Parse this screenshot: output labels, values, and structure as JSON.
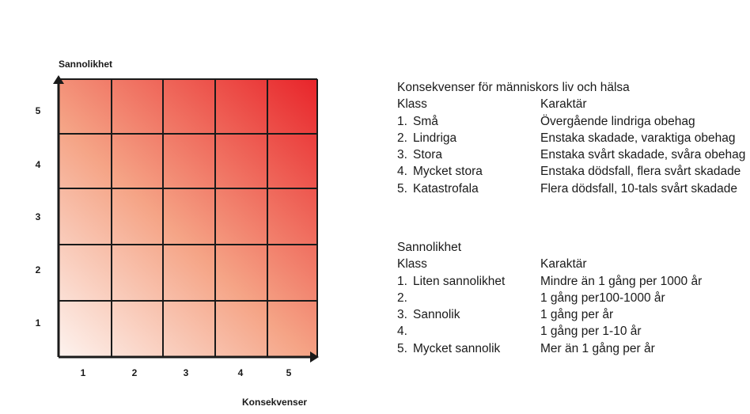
{
  "matrix": {
    "y_axis_title": "Sannolikhet",
    "x_axis_title": "Konsekvenser",
    "x_ticks": [
      "1",
      "2",
      "3",
      "4",
      "5"
    ],
    "y_ticks": [
      "5",
      "4",
      "3",
      "2",
      "1"
    ],
    "low_color": "#fdf3ef",
    "high_color": "#e8242a"
  },
  "consequences": {
    "title": "Konsekvenser för människors liv och hälsa",
    "col_class": "Klass",
    "col_character": "Karaktär",
    "rows": [
      {
        "num": "1.",
        "label": "Små",
        "character": "Övergående lindriga obehag"
      },
      {
        "num": "2.",
        "label": "Lindriga",
        "character": "Enstaka skadade, varaktiga obehag"
      },
      {
        "num": "3.",
        "label": "Stora",
        "character": "Enstaka svårt skadade, svåra obehag"
      },
      {
        "num": "4.",
        "label": "Mycket stora",
        "character": "Enstaka dödsfall, flera svårt skadade"
      },
      {
        "num": "5.",
        "label": "Katastrofala",
        "character": "Flera dödsfall, 10-tals svårt skadade"
      }
    ]
  },
  "probability": {
    "title": "Sannolikhet",
    "col_class": "Klass",
    "col_character": "Karaktär",
    "rows": [
      {
        "num": "1.",
        "label": "Liten sannolikhet",
        "character": "Mindre än 1 gång per 1000 år"
      },
      {
        "num": "2.",
        "label": "",
        "character": "1 gång per100-1000 år"
      },
      {
        "num": "3.",
        "label": "Sannolik",
        "character": "1 gång per år"
      },
      {
        "num": "4.",
        "label": "",
        "character": "1 gång per 1-10 år"
      },
      {
        "num": "5.",
        "label": "Mycket sannolik",
        "character": "Mer än 1 gång per år"
      }
    ]
  }
}
